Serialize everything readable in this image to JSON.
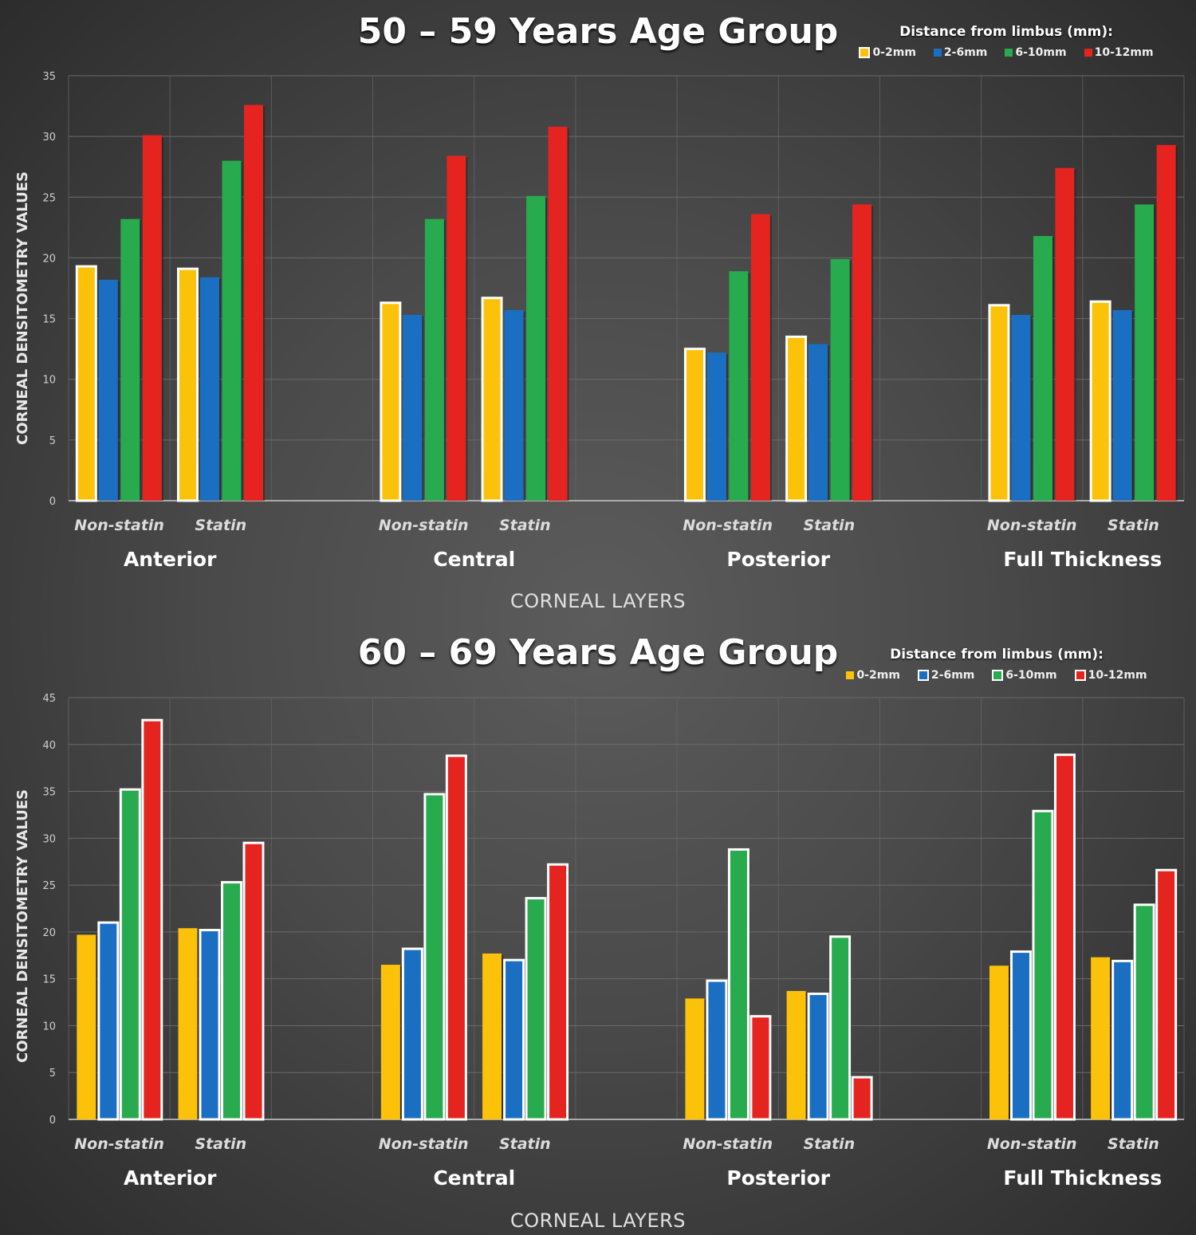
{
  "colors": {
    "series": [
      "#fcc20a",
      "#1b6fc2",
      "#27ab4e",
      "#e52420"
    ],
    "grid": "#6a6a6a",
    "axis": "#aaaaaa"
  },
  "chart_data": [
    {
      "type": "bar",
      "title": "50 – 59 Years Age Group",
      "xlabel": "CORNEAL LAYERS",
      "ylabel": "CORNEAL DENSITOMETRY VALUES",
      "ylim": [
        0,
        35
      ],
      "yticks": [
        0,
        5,
        10,
        15,
        20,
        25,
        30,
        35
      ],
      "grid": true,
      "legend_title": "Distance from limbus (mm):",
      "legend_position": "top-right",
      "highlighted_series": [
        0
      ],
      "groups": [
        "Anterior",
        "Central",
        "Posterior",
        "Full Thickness"
      ],
      "subgroups": [
        "Non-statin",
        "Statin"
      ],
      "series": [
        {
          "name": "0-2mm",
          "values": [
            [
              19.3,
              19.1
            ],
            [
              16.3,
              16.7
            ],
            [
              12.5,
              13.5
            ],
            [
              16.1,
              16.4
            ]
          ]
        },
        {
          "name": "2-6mm",
          "values": [
            [
              18.2,
              18.4
            ],
            [
              15.3,
              15.7
            ],
            [
              12.2,
              12.9
            ],
            [
              15.3,
              15.7
            ]
          ]
        },
        {
          "name": "6-10mm",
          "values": [
            [
              23.2,
              28.0
            ],
            [
              23.2,
              25.1
            ],
            [
              18.9,
              19.9
            ],
            [
              21.8,
              24.4
            ]
          ]
        },
        {
          "name": "10-12mm",
          "values": [
            [
              30.1,
              32.6
            ],
            [
              28.4,
              30.8
            ],
            [
              23.6,
              24.4
            ],
            [
              27.4,
              29.3
            ]
          ]
        }
      ]
    },
    {
      "type": "bar",
      "title": "60 – 69 Years Age Group",
      "xlabel": "CORNEAL LAYERS",
      "ylabel": "CORNEAL DENSITOMETRY VALUES",
      "ylim": [
        0,
        45
      ],
      "yticks": [
        0,
        5,
        10,
        15,
        20,
        25,
        30,
        35,
        40,
        45
      ],
      "grid": true,
      "legend_title": "Distance from limbus (mm):",
      "legend_position": "top-right",
      "highlighted_series": [
        1,
        2,
        3
      ],
      "groups": [
        "Anterior",
        "Central",
        "Posterior",
        "Full Thickness"
      ],
      "subgroups": [
        "Non-statin",
        "Statin"
      ],
      "series": [
        {
          "name": "0-2mm",
          "values": [
            [
              19.7,
              20.4
            ],
            [
              16.5,
              17.7
            ],
            [
              12.9,
              13.7
            ],
            [
              16.4,
              17.3
            ]
          ]
        },
        {
          "name": "2-6mm",
          "values": [
            [
              21.0,
              20.2
            ],
            [
              18.2,
              17.0
            ],
            [
              14.8,
              13.4
            ],
            [
              17.9,
              16.9
            ]
          ]
        },
        {
          "name": "6-10mm",
          "values": [
            [
              35.2,
              25.3
            ],
            [
              34.7,
              23.6
            ],
            [
              28.8,
              19.5
            ],
            [
              32.9,
              22.9
            ]
          ]
        },
        {
          "name": "10-12mm",
          "values": [
            [
              42.6,
              29.5
            ],
            [
              38.8,
              27.2
            ],
            [
              11.0,
              4.5
            ],
            [
              38.9,
              26.6
            ]
          ]
        }
      ]
    }
  ]
}
